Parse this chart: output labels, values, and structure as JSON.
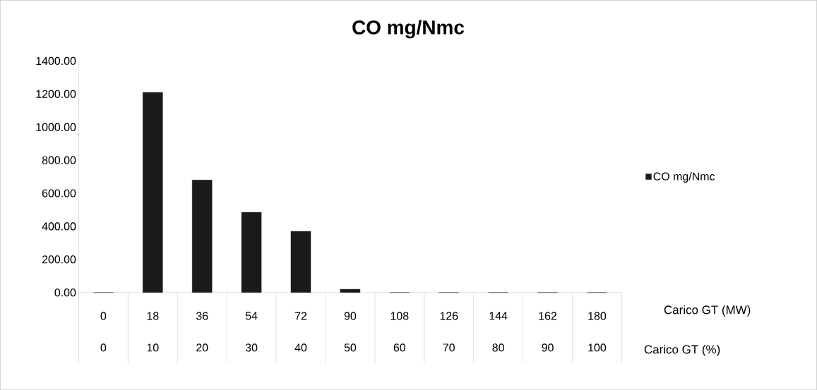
{
  "chart_data": {
    "type": "bar",
    "title": "CO mg/Nmc",
    "categories": [
      "0",
      "18",
      "36",
      "54",
      "72",
      "90",
      "108",
      "126",
      "144",
      "162",
      "180"
    ],
    "series": [
      {
        "name": "CO mg/Nmc",
        "color": "#1a1a1a",
        "values": [
          0,
          1210,
          680,
          485,
          370,
          20,
          0,
          0,
          0,
          0,
          0
        ]
      }
    ],
    "xlabel": "Carico GT (MW)",
    "annotations": [
      "0",
      "10",
      "20",
      "30",
      "40",
      "50",
      "60",
      "70",
      "80",
      "90",
      "100",
      "Carico GT (%)"
    ],
    "ylim": [
      0,
      1400
    ],
    "yticks": [
      {
        "value": 0,
        "label": "0.00"
      },
      {
        "value": 200,
        "label": "200.00"
      },
      {
        "value": 400,
        "label": "400.00"
      },
      {
        "value": 600,
        "label": "600.00"
      },
      {
        "value": 800,
        "label": "800.00"
      },
      {
        "value": 1000,
        "label": "1000.00"
      },
      {
        "value": 1200,
        "label": "1200.00"
      },
      {
        "value": 1400,
        "label": "1400.00"
      }
    ],
    "legend": "right",
    "grid": false
  }
}
